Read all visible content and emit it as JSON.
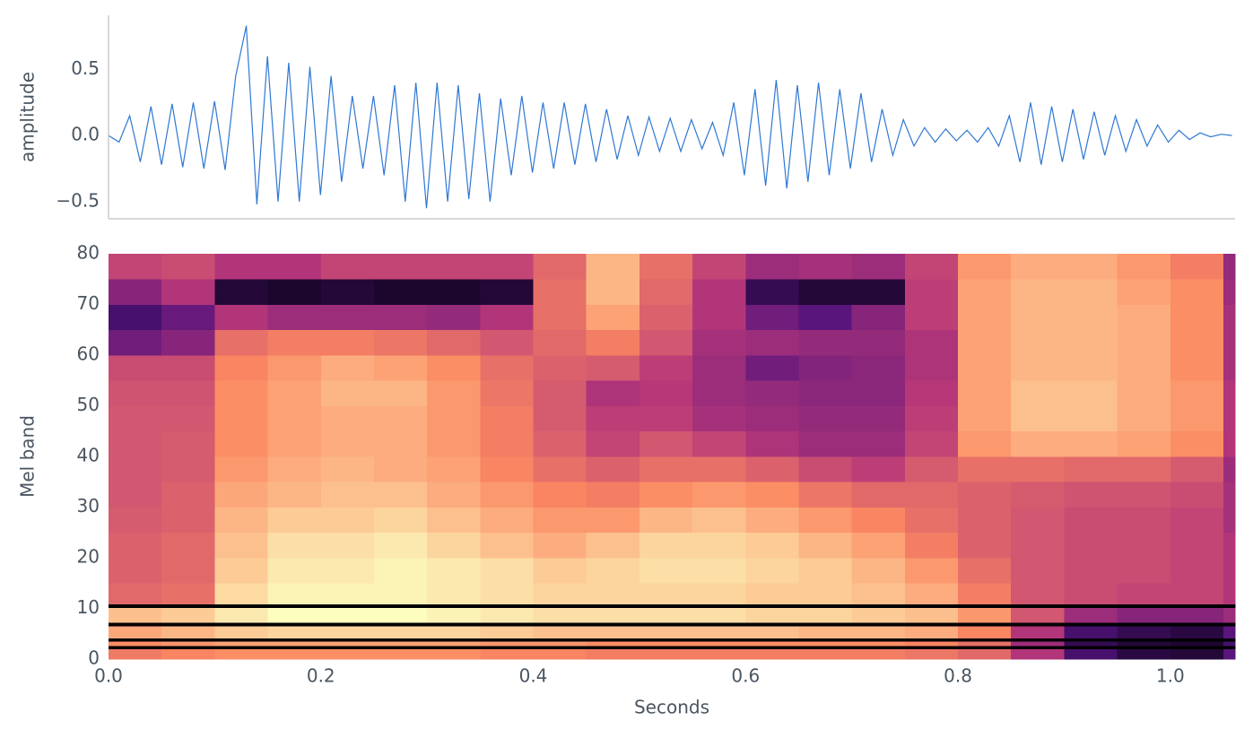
{
  "chart_data": [
    {
      "type": "line",
      "ylabel": "amplitude",
      "color": "#2f78d4",
      "xlim": [
        0,
        1.063
      ],
      "ylim": [
        -0.63,
        0.91
      ],
      "yticks": [
        {
          "value": -0.5,
          "label": "−0.5"
        },
        {
          "value": 0,
          "label": "0.0"
        },
        0.5
      ],
      "x": [
        0,
        0.01,
        0.02,
        0.03,
        0.04,
        0.05,
        0.06,
        0.07,
        0.08,
        0.09,
        0.1,
        0.11,
        0.12,
        0.13,
        0.14,
        0.15,
        0.16,
        0.17,
        0.18,
        0.19,
        0.2,
        0.21,
        0.22,
        0.23,
        0.24,
        0.25,
        0.26,
        0.27,
        0.28,
        0.29,
        0.3,
        0.31,
        0.32,
        0.33,
        0.34,
        0.35,
        0.36,
        0.37,
        0.38,
        0.39,
        0.4,
        0.41,
        0.42,
        0.43,
        0.44,
        0.45,
        0.46,
        0.47,
        0.48,
        0.49,
        0.5,
        0.51,
        0.52,
        0.53,
        0.54,
        0.55,
        0.56,
        0.57,
        0.58,
        0.59,
        0.6,
        0.61,
        0.62,
        0.63,
        0.64,
        0.65,
        0.66,
        0.67,
        0.68,
        0.69,
        0.7,
        0.71,
        0.72,
        0.73,
        0.74,
        0.75,
        0.76,
        0.77,
        0.78,
        0.79,
        0.8,
        0.81,
        0.82,
        0.83,
        0.84,
        0.85,
        0.86,
        0.87,
        0.88,
        0.89,
        0.9,
        0.91,
        0.92,
        0.93,
        0.94,
        0.95,
        0.96,
        0.97,
        0.98,
        0.99,
        1,
        1.01,
        1.02,
        1.03,
        1.04,
        1.05,
        1.06
      ],
      "values": [
        0,
        -0.05,
        0.15,
        -0.2,
        0.22,
        -0.22,
        0.24,
        -0.24,
        0.25,
        -0.25,
        0.26,
        -0.26,
        0.45,
        0.83,
        -0.52,
        0.6,
        -0.5,
        0.55,
        -0.5,
        0.52,
        -0.45,
        0.45,
        -0.35,
        0.3,
        -0.25,
        0.3,
        -0.3,
        0.38,
        -0.5,
        0.4,
        -0.55,
        0.4,
        -0.5,
        0.38,
        -0.48,
        0.32,
        -0.5,
        0.28,
        -0.3,
        0.3,
        -0.28,
        0.25,
        -0.25,
        0.25,
        -0.22,
        0.24,
        -0.2,
        0.2,
        -0.18,
        0.15,
        -0.15,
        0.14,
        -0.12,
        0.13,
        -0.12,
        0.12,
        -0.1,
        0.1,
        -0.15,
        0.25,
        -0.3,
        0.35,
        -0.38,
        0.42,
        -0.4,
        0.38,
        -0.35,
        0.4,
        -0.3,
        0.35,
        -0.25,
        0.32,
        -0.2,
        0.2,
        -0.15,
        0.12,
        -0.08,
        0.06,
        -0.05,
        0.05,
        -0.04,
        0.04,
        -0.05,
        0.06,
        -0.08,
        0.15,
        -0.2,
        0.25,
        -0.22,
        0.22,
        -0.2,
        0.2,
        -0.18,
        0.18,
        -0.15,
        0.15,
        -0.12,
        0.12,
        -0.08,
        0.08,
        -0.05,
        0.04,
        -0.03,
        0.02,
        -0.01,
        0.01,
        0
      ]
    },
    {
      "type": "heatmap",
      "xlabel": "Seconds",
      "ylabel": "Mel band",
      "xlim": [
        0,
        1.061
      ],
      "ylim": [
        0,
        80
      ],
      "xticks": [
        {
          "value": 0,
          "label": "0.0"
        },
        0.2,
        0.4,
        0.6,
        0.8,
        {
          "value": 1,
          "label": "1.0"
        }
      ],
      "yticks": [
        0,
        10,
        20,
        30,
        40,
        50,
        60,
        70,
        80
      ],
      "x_edges": [
        0,
        0.05,
        0.1,
        0.15,
        0.2,
        0.25,
        0.3,
        0.35,
        0.4,
        0.45,
        0.5,
        0.55,
        0.6,
        0.65,
        0.7,
        0.75,
        0.8,
        0.85,
        0.9,
        0.95,
        1,
        1.05,
        1.061
      ],
      "y_edges": [
        0,
        2,
        2.6,
        3.5,
        4.1,
        6.5,
        7.2,
        10.2,
        10.9,
        15,
        20,
        25,
        30,
        35,
        40,
        45,
        50,
        55,
        60,
        65,
        70,
        75,
        80
      ],
      "z": [
        [
          65,
          68,
          70,
          70,
          70,
          70,
          70,
          68,
          68,
          66,
          66,
          66,
          66,
          66,
          66,
          64,
          60,
          45,
          20,
          12,
          10,
          25
        ],
        [
          0,
          0,
          0,
          0,
          0,
          0,
          0,
          0,
          0,
          0,
          0,
          0,
          0,
          0,
          0,
          0,
          0,
          0,
          0,
          0,
          0,
          0
        ],
        [
          70,
          72,
          74,
          74,
          74,
          74,
          74,
          72,
          72,
          70,
          70,
          70,
          70,
          70,
          70,
          68,
          62,
          40,
          15,
          10,
          8,
          20
        ],
        [
          0,
          0,
          0,
          0,
          0,
          0,
          0,
          0,
          0,
          0,
          0,
          0,
          0,
          0,
          0,
          0,
          0,
          0,
          0,
          0,
          0,
          0
        ],
        [
          75,
          78,
          82,
          84,
          84,
          84,
          84,
          82,
          80,
          80,
          80,
          80,
          80,
          78,
          78,
          76,
          68,
          45,
          20,
          15,
          12,
          25
        ],
        [
          0,
          0,
          0,
          0,
          0,
          0,
          0,
          0,
          0,
          0,
          0,
          0,
          0,
          0,
          0,
          0,
          0,
          0,
          0,
          0,
          0,
          0
        ],
        [
          80,
          82,
          88,
          92,
          92,
          92,
          90,
          88,
          86,
          86,
          86,
          86,
          84,
          84,
          82,
          80,
          72,
          55,
          40,
          35,
          35,
          40
        ],
        [
          0,
          0,
          0,
          0,
          0,
          0,
          0,
          0,
          0,
          0,
          0,
          0,
          0,
          0,
          0,
          0,
          0,
          0,
          0,
          0,
          0,
          0
        ],
        [
          60,
          62,
          85,
          90,
          90,
          90,
          88,
          86,
          84,
          84,
          84,
          84,
          82,
          82,
          80,
          76,
          66,
          55,
          52,
          50,
          50,
          45
        ],
        [
          58,
          60,
          82,
          88,
          88,
          90,
          88,
          86,
          82,
          84,
          86,
          86,
          84,
          82,
          78,
          72,
          62,
          55,
          52,
          52,
          50,
          45
        ],
        [
          58,
          60,
          80,
          86,
          86,
          88,
          84,
          80,
          76,
          80,
          84,
          84,
          82,
          78,
          74,
          66,
          58,
          55,
          52,
          52,
          50,
          45
        ],
        [
          56,
          58,
          78,
          82,
          82,
          84,
          80,
          76,
          72,
          72,
          78,
          80,
          76,
          72,
          68,
          62,
          58,
          55,
          52,
          52,
          50,
          42
        ],
        [
          55,
          58,
          75,
          78,
          80,
          80,
          76,
          72,
          68,
          66,
          70,
          72,
          70,
          64,
          60,
          60,
          58,
          56,
          54,
          54,
          52,
          42
        ],
        [
          55,
          56,
          72,
          76,
          78,
          76,
          74,
          68,
          62,
          58,
          62,
          62,
          58,
          52,
          48,
          56,
          62,
          62,
          60,
          60,
          56,
          40
        ],
        [
          55,
          56,
          70,
          74,
          76,
          76,
          72,
          66,
          58,
          50,
          55,
          50,
          44,
          40,
          40,
          50,
          72,
          76,
          76,
          74,
          70,
          45
        ],
        [
          55,
          55,
          70,
          74,
          76,
          76,
          72,
          66,
          56,
          48,
          48,
          42,
          40,
          38,
          38,
          48,
          74,
          80,
          80,
          76,
          72,
          45
        ],
        [
          54,
          54,
          70,
          74,
          78,
          78,
          72,
          64,
          56,
          44,
          46,
          40,
          38,
          36,
          36,
          46,
          74,
          80,
          80,
          76,
          72,
          45
        ],
        [
          52,
          52,
          68,
          72,
          76,
          74,
          70,
          62,
          58,
          56,
          48,
          40,
          30,
          34,
          36,
          44,
          74,
          78,
          78,
          76,
          70,
          42
        ],
        [
          30,
          35,
          62,
          66,
          66,
          64,
          60,
          55,
          60,
          66,
          55,
          42,
          40,
          38,
          38,
          44,
          74,
          78,
          78,
          76,
          70,
          42
        ],
        [
          20,
          28,
          45,
          40,
          40,
          40,
          38,
          45,
          62,
          74,
          58,
          45,
          30,
          25,
          35,
          48,
          74,
          78,
          78,
          76,
          70,
          42
        ],
        [
          35,
          45,
          10,
          8,
          10,
          8,
          8,
          10,
          62,
          78,
          60,
          45,
          15,
          10,
          10,
          48,
          74,
          78,
          78,
          74,
          70,
          40
        ],
        [
          50,
          52,
          45,
          45,
          50,
          50,
          50,
          50,
          60,
          78,
          62,
          50,
          40,
          42,
          40,
          50,
          72,
          76,
          76,
          72,
          66,
          38
        ]
      ]
    }
  ]
}
